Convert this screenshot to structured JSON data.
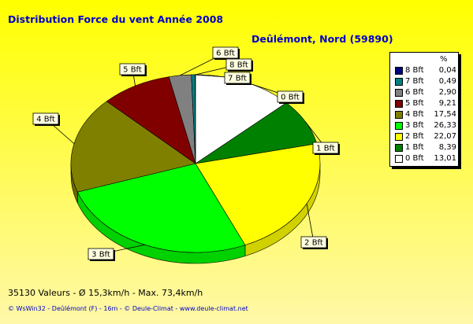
{
  "title": "Distribution Force du vent  Année 2008",
  "subtitle": "Deûlémont, Nord (59890)",
  "footer": {
    "stats": "35130 Valeurs   -   Ø 15,3km/h  -  Max. 73,4km/h",
    "credit": "© WsWin32  -  Deûlémont (F) - 16m  -  © Deule-Climat - www.deule-climat.net"
  },
  "legend": {
    "header": "%",
    "placement": "right",
    "items": [
      {
        "label": "8 Bft",
        "value": "0,04",
        "color": "#000080"
      },
      {
        "label": "7 Bft",
        "value": "0,49",
        "color": "#008080"
      },
      {
        "label": "6 Bft",
        "value": "2,90",
        "color": "#808080"
      },
      {
        "label": "5 Bft",
        "value": "9,21",
        "color": "#800000"
      },
      {
        "label": "4 Bft",
        "value": "17,54",
        "color": "#808000"
      },
      {
        "label": "3 Bft",
        "value": "26,33",
        "color": "#00ff00"
      },
      {
        "label": "2 Bft",
        "value": "22,07",
        "color": "#ffff00"
      },
      {
        "label": "1 Bft",
        "value": "8,39",
        "color": "#008000"
      },
      {
        "label": "0 Bft",
        "value": "13,01",
        "color": "#ffffff"
      }
    ]
  },
  "chart_data": {
    "type": "pie",
    "title": "Distribution Force du vent  Année 2008",
    "subtitle": "Deûlémont, Nord (59890)",
    "unit": "%",
    "categories": [
      "0 Bft",
      "1 Bft",
      "2 Bft",
      "3 Bft",
      "4 Bft",
      "5 Bft",
      "6 Bft",
      "7 Bft",
      "8 Bft"
    ],
    "values": [
      13.01,
      8.39,
      22.07,
      26.33,
      17.54,
      9.21,
      2.9,
      0.49,
      0.04
    ],
    "colors": [
      "#ffffff",
      "#008000",
      "#ffff00",
      "#00ff00",
      "#808000",
      "#800000",
      "#808080",
      "#008080",
      "#000080"
    ],
    "start_angle_deg": 90,
    "direction": "clockwise",
    "style": "3d"
  }
}
